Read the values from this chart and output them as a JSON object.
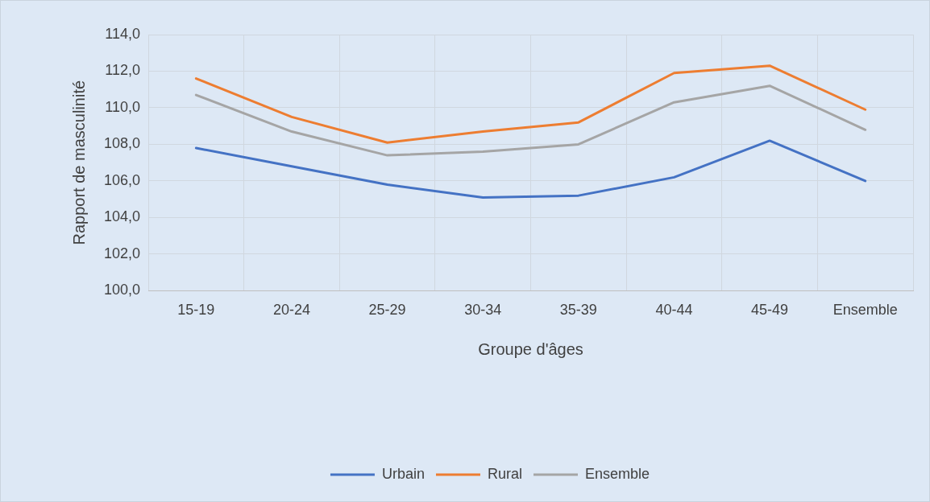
{
  "chart_data": {
    "type": "line",
    "xlabel": "Groupe d'âges",
    "ylabel": "Rapport de masculinité",
    "categories": [
      "15-19",
      "20-24",
      "25-29",
      "30-34",
      "35-39",
      "40-44",
      "45-49",
      "Ensemble"
    ],
    "series": [
      {
        "name": "Urbain",
        "color": "#4472c4",
        "values": [
          107.8,
          106.8,
          105.8,
          105.1,
          105.2,
          106.2,
          108.2,
          106.0
        ]
      },
      {
        "name": "Rural",
        "color": "#ed7d31",
        "values": [
          111.6,
          109.5,
          108.1,
          108.7,
          109.2,
          111.9,
          112.3,
          109.9
        ]
      },
      {
        "name": "Ensemble",
        "color": "#a5a5a5",
        "values": [
          110.7,
          108.7,
          107.4,
          107.6,
          108.0,
          110.3,
          111.2,
          108.8
        ]
      }
    ],
    "ylim": [
      100,
      114
    ],
    "yticks": [
      {
        "value": 100,
        "label": "100,0"
      },
      {
        "value": 102,
        "label": "102,0"
      },
      {
        "value": 104,
        "label": "104,0"
      },
      {
        "value": 106,
        "label": "106,0"
      },
      {
        "value": 108,
        "label": "108,0"
      },
      {
        "value": 110,
        "label": "110,0"
      },
      {
        "value": 112,
        "label": "112,0"
      },
      {
        "value": 114,
        "label": "114,0"
      }
    ],
    "grid": true,
    "legend": "bottom",
    "marker": "none",
    "line_style": "solid"
  }
}
